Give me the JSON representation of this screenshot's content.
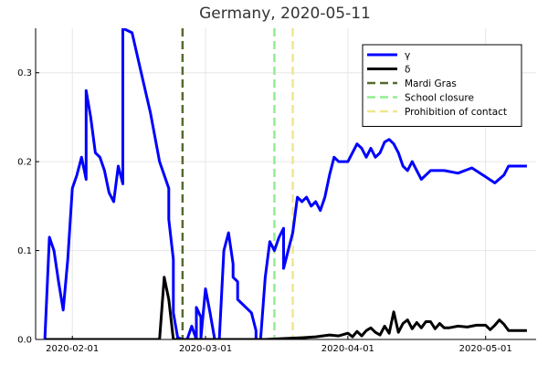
{
  "chart_data": {
    "type": "line",
    "title": "Germany, 2020-05-11",
    "xlabel": "",
    "ylabel": "",
    "x_axis": {
      "type": "date",
      "range": [
        "2020-01-24",
        "2020-05-12"
      ],
      "ticks": [
        {
          "date": "2020-02-01",
          "label": "2020-02-01"
        },
        {
          "date": "2020-03-01",
          "label": "2020-03-01"
        },
        {
          "date": "2020-04-01",
          "label": "2020-04-01"
        },
        {
          "date": "2020-05-01",
          "label": "2020-05-01"
        }
      ]
    },
    "y_axis": {
      "ticks": [
        {
          "value": 0,
          "label": "0.0"
        },
        {
          "value": 0.1,
          "label": "0.1"
        },
        {
          "value": 0.2,
          "label": "0.2"
        },
        {
          "value": 0.3,
          "label": "0.3"
        }
      ],
      "ylim": [
        0,
        0.35
      ]
    },
    "grid": true,
    "legend_position": "top-right",
    "series": [
      {
        "name": "γ",
        "color": "#0000ff",
        "style": "solid",
        "points": [
          [
            "2020-01-26",
            0.0
          ],
          [
            "2020-01-27",
            0.115
          ],
          [
            "2020-01-28",
            0.1
          ],
          [
            "2020-01-29",
            0.065
          ],
          [
            "2020-01-30",
            0.033
          ],
          [
            "2020-01-31",
            0.09
          ],
          [
            "2020-02-01",
            0.17
          ],
          [
            "2020-02-02",
            0.185
          ],
          [
            "2020-02-03",
            0.205
          ],
          [
            "2020-02-04",
            0.18
          ],
          [
            "2020-02-04",
            0.28
          ],
          [
            "2020-02-05",
            0.25
          ],
          [
            "2020-02-06",
            0.21
          ],
          [
            "2020-02-07",
            0.205
          ],
          [
            "2020-02-08",
            0.19
          ],
          [
            "2020-02-09",
            0.165
          ],
          [
            "2020-02-10",
            0.155
          ],
          [
            "2020-02-11",
            0.195
          ],
          [
            "2020-02-12",
            0.175
          ],
          [
            "2020-02-12",
            0.35
          ],
          [
            "2020-02-14",
            0.345
          ],
          [
            "2020-02-16",
            0.3
          ],
          [
            "2020-02-18",
            0.255
          ],
          [
            "2020-02-20",
            0.2
          ],
          [
            "2020-02-22",
            0.17
          ],
          [
            "2020-02-22",
            0.135
          ],
          [
            "2020-02-23",
            0.09
          ],
          [
            "2020-02-23",
            0.03
          ],
          [
            "2020-02-24",
            0.0
          ],
          [
            "2020-02-24",
            0.002
          ],
          [
            "2020-02-25",
            0.0
          ],
          [
            "2020-02-26",
            0.0
          ],
          [
            "2020-02-27",
            0.015
          ],
          [
            "2020-02-28",
            0.0
          ],
          [
            "2020-02-28",
            0.036
          ],
          [
            "2020-02-29",
            0.025
          ],
          [
            "2020-02-29",
            0.002
          ],
          [
            "2020-03-01",
            0.057
          ],
          [
            "2020-03-02",
            0.03
          ],
          [
            "2020-03-03",
            0.0
          ],
          [
            "2020-03-04",
            0.0
          ],
          [
            "2020-03-05",
            0.1
          ],
          [
            "2020-03-06",
            0.12
          ],
          [
            "2020-03-07",
            0.085
          ],
          [
            "2020-03-07",
            0.07
          ],
          [
            "2020-03-08",
            0.065
          ],
          [
            "2020-03-08",
            0.045
          ],
          [
            "2020-03-09",
            0.04
          ],
          [
            "2020-03-10",
            0.035
          ],
          [
            "2020-03-11",
            0.03
          ],
          [
            "2020-03-12",
            0.01
          ],
          [
            "2020-03-12",
            0.0
          ],
          [
            "2020-03-13",
            0.0
          ],
          [
            "2020-03-14",
            0.07
          ],
          [
            "2020-03-15",
            0.11
          ],
          [
            "2020-03-16",
            0.1
          ],
          [
            "2020-03-17",
            0.115
          ],
          [
            "2020-03-18",
            0.125
          ],
          [
            "2020-03-18",
            0.08
          ],
          [
            "2020-03-19",
            0.1
          ],
          [
            "2020-03-20",
            0.12
          ],
          [
            "2020-03-21",
            0.16
          ],
          [
            "2020-03-22",
            0.155
          ],
          [
            "2020-03-23",
            0.16
          ],
          [
            "2020-03-24",
            0.15
          ],
          [
            "2020-03-25",
            0.155
          ],
          [
            "2020-03-26",
            0.145
          ],
          [
            "2020-03-27",
            0.16
          ],
          [
            "2020-03-28",
            0.185
          ],
          [
            "2020-03-29",
            0.205
          ],
          [
            "2020-03-30",
            0.2
          ],
          [
            "2020-03-31",
            0.2
          ],
          [
            "2020-04-01",
            0.2
          ],
          [
            "2020-04-02",
            0.21
          ],
          [
            "2020-04-03",
            0.22
          ],
          [
            "2020-04-04",
            0.215
          ],
          [
            "2020-04-05",
            0.205
          ],
          [
            "2020-04-06",
            0.215
          ],
          [
            "2020-04-07",
            0.205
          ],
          [
            "2020-04-08",
            0.21
          ],
          [
            "2020-04-09",
            0.222
          ],
          [
            "2020-04-10",
            0.225
          ],
          [
            "2020-04-11",
            0.22
          ],
          [
            "2020-04-12",
            0.21
          ],
          [
            "2020-04-13",
            0.195
          ],
          [
            "2020-04-14",
            0.19
          ],
          [
            "2020-04-15",
            0.2
          ],
          [
            "2020-04-16",
            0.19
          ],
          [
            "2020-04-17",
            0.18
          ],
          [
            "2020-04-19",
            0.19
          ],
          [
            "2020-04-22",
            0.19
          ],
          [
            "2020-04-25",
            0.187
          ],
          [
            "2020-04-28",
            0.193
          ],
          [
            "2020-05-01",
            0.183
          ],
          [
            "2020-05-03",
            0.176
          ],
          [
            "2020-05-05",
            0.185
          ],
          [
            "2020-05-06",
            0.195
          ],
          [
            "2020-05-10",
            0.195
          ]
        ]
      },
      {
        "name": "δ",
        "color": "#000000",
        "style": "solid",
        "points": [
          [
            "2020-01-26",
            0.0
          ],
          [
            "2020-02-20",
            0.0
          ],
          [
            "2020-02-21",
            0.07
          ],
          [
            "2020-02-22",
            0.045
          ],
          [
            "2020-02-23",
            0.0
          ],
          [
            "2020-03-14",
            0.0
          ],
          [
            "2020-03-18",
            0.001
          ],
          [
            "2020-03-22",
            0.002
          ],
          [
            "2020-03-25",
            0.003
          ],
          [
            "2020-03-28",
            0.005
          ],
          [
            "2020-03-30",
            0.004
          ],
          [
            "2020-04-01",
            0.007
          ],
          [
            "2020-04-02",
            0.003
          ],
          [
            "2020-04-03",
            0.009
          ],
          [
            "2020-04-04",
            0.004
          ],
          [
            "2020-04-05",
            0.01
          ],
          [
            "2020-04-06",
            0.013
          ],
          [
            "2020-04-07",
            0.008
          ],
          [
            "2020-04-08",
            0.005
          ],
          [
            "2020-04-09",
            0.015
          ],
          [
            "2020-04-10",
            0.007
          ],
          [
            "2020-04-11",
            0.031
          ],
          [
            "2020-04-12",
            0.008
          ],
          [
            "2020-04-13",
            0.018
          ],
          [
            "2020-04-14",
            0.022
          ],
          [
            "2020-04-15",
            0.012
          ],
          [
            "2020-04-16",
            0.019
          ],
          [
            "2020-04-17",
            0.013
          ],
          [
            "2020-04-18",
            0.02
          ],
          [
            "2020-04-19",
            0.02
          ],
          [
            "2020-04-20",
            0.012
          ],
          [
            "2020-04-21",
            0.018
          ],
          [
            "2020-04-22",
            0.013
          ],
          [
            "2020-04-23",
            0.013
          ],
          [
            "2020-04-25",
            0.015
          ],
          [
            "2020-04-27",
            0.014
          ],
          [
            "2020-04-29",
            0.016
          ],
          [
            "2020-05-01",
            0.016
          ],
          [
            "2020-05-02",
            0.011
          ],
          [
            "2020-05-03",
            0.016
          ],
          [
            "2020-05-04",
            0.022
          ],
          [
            "2020-05-05",
            0.017
          ],
          [
            "2020-05-06",
            0.01
          ],
          [
            "2020-05-10",
            0.01
          ]
        ]
      }
    ],
    "vlines": [
      {
        "name": "Mardi Gras",
        "date": "2020-02-25",
        "color": "#556b2f",
        "style": "dashed"
      },
      {
        "name": "School closure",
        "date": "2020-03-16",
        "color": "#90ee90",
        "style": "dashed"
      },
      {
        "name": "Prohibition of contact",
        "date": "2020-03-20",
        "color": "#f0e68c",
        "style": "dashed"
      }
    ]
  }
}
